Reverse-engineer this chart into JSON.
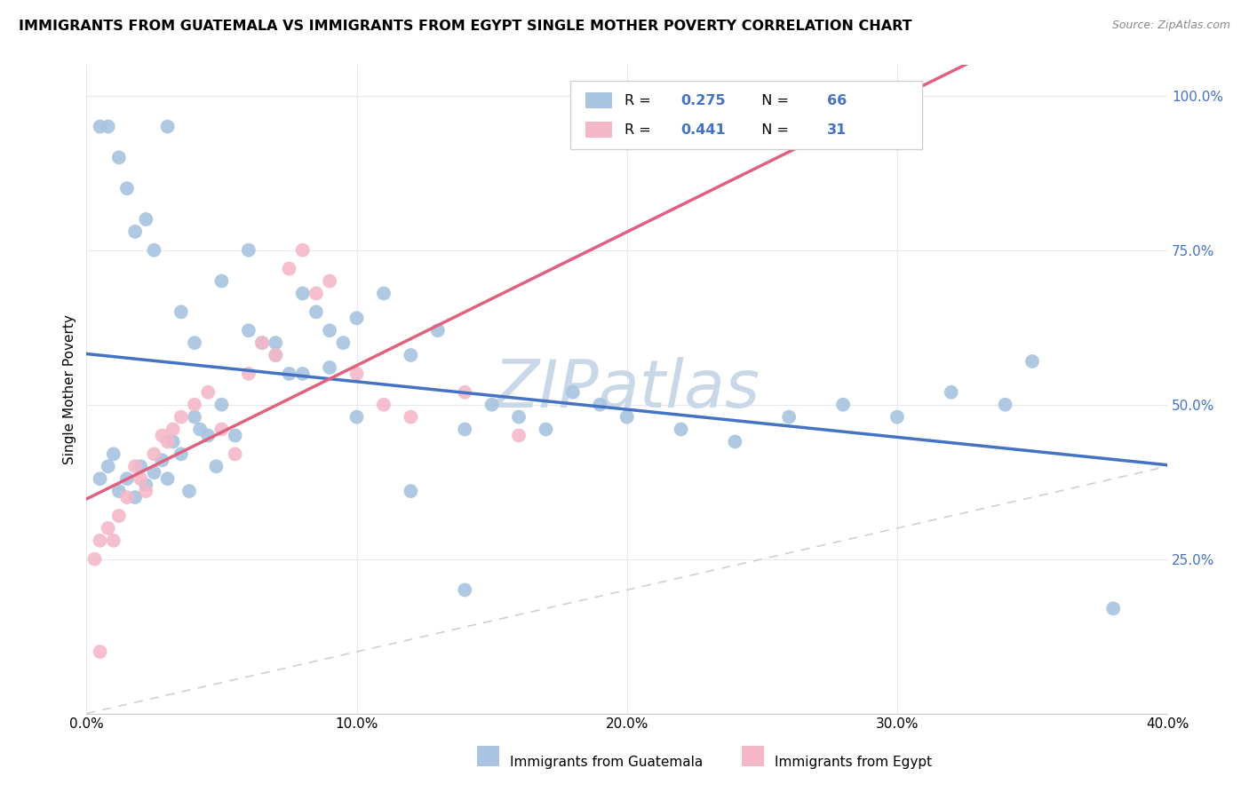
{
  "title": "IMMIGRANTS FROM GUATEMALA VS IMMIGRANTS FROM EGYPT SINGLE MOTHER POVERTY CORRELATION CHART",
  "source": "Source: ZipAtlas.com",
  "ylabel": "Single Mother Poverty",
  "y_ticks": [
    0.0,
    0.25,
    0.5,
    0.75,
    1.0
  ],
  "x_ticks": [
    0.0,
    0.1,
    0.2,
    0.3,
    0.4
  ],
  "R_guatemala": "0.275",
  "N_guatemala": "66",
  "R_egypt": "0.441",
  "N_egypt": "31",
  "dot_color_guatemala": "#a8c4e0",
  "dot_color_egypt": "#f4b8c8",
  "line_color_guatemala": "#4472c4",
  "line_color_egypt": "#e06080",
  "diagonal_color": "#d0d0d0",
  "watermark": "ZIPatlas",
  "watermark_color": "#c8d8e8",
  "r_n_color": "#4472c4",
  "background_color": "#ffffff",
  "legend_label_guatemala": "Immigrants from Guatemala",
  "legend_label_egypt": "Immigrants from Egypt",
  "guatemala_x": [
    0.005,
    0.008,
    0.01,
    0.012,
    0.015,
    0.018,
    0.02,
    0.022,
    0.025,
    0.028,
    0.03,
    0.032,
    0.035,
    0.038,
    0.04,
    0.042,
    0.045,
    0.048,
    0.05,
    0.055,
    0.06,
    0.065,
    0.07,
    0.075,
    0.08,
    0.085,
    0.09,
    0.095,
    0.1,
    0.11,
    0.12,
    0.13,
    0.14,
    0.15,
    0.16,
    0.17,
    0.18,
    0.19,
    0.2,
    0.22,
    0.24,
    0.26,
    0.28,
    0.3,
    0.32,
    0.34,
    0.005,
    0.008,
    0.012,
    0.015,
    0.018,
    0.022,
    0.025,
    0.03,
    0.035,
    0.04,
    0.05,
    0.06,
    0.07,
    0.08,
    0.09,
    0.1,
    0.12,
    0.14,
    0.35,
    0.38
  ],
  "guatemala_y": [
    0.38,
    0.4,
    0.42,
    0.36,
    0.38,
    0.35,
    0.4,
    0.37,
    0.39,
    0.41,
    0.38,
    0.44,
    0.42,
    0.36,
    0.48,
    0.46,
    0.45,
    0.4,
    0.5,
    0.45,
    0.62,
    0.6,
    0.58,
    0.55,
    0.68,
    0.65,
    0.62,
    0.6,
    0.64,
    0.68,
    0.58,
    0.62,
    0.46,
    0.5,
    0.48,
    0.46,
    0.52,
    0.5,
    0.48,
    0.46,
    0.44,
    0.48,
    0.5,
    0.48,
    0.52,
    0.5,
    0.95,
    0.95,
    0.9,
    0.85,
    0.78,
    0.8,
    0.75,
    0.95,
    0.65,
    0.6,
    0.7,
    0.75,
    0.6,
    0.55,
    0.56,
    0.48,
    0.36,
    0.2,
    0.57,
    0.17
  ],
  "egypt_x": [
    0.003,
    0.005,
    0.008,
    0.01,
    0.012,
    0.015,
    0.018,
    0.02,
    0.022,
    0.025,
    0.028,
    0.03,
    0.032,
    0.035,
    0.04,
    0.045,
    0.05,
    0.055,
    0.06,
    0.065,
    0.07,
    0.075,
    0.08,
    0.085,
    0.09,
    0.1,
    0.11,
    0.12,
    0.14,
    0.16,
    0.005
  ],
  "egypt_y": [
    0.25,
    0.28,
    0.3,
    0.28,
    0.32,
    0.35,
    0.4,
    0.38,
    0.36,
    0.42,
    0.45,
    0.44,
    0.46,
    0.48,
    0.5,
    0.52,
    0.46,
    0.42,
    0.55,
    0.6,
    0.58,
    0.72,
    0.75,
    0.68,
    0.7,
    0.55,
    0.5,
    0.48,
    0.52,
    0.45,
    0.1
  ],
  "xlim": [
    0.0,
    0.4
  ],
  "ylim": [
    0.0,
    1.05
  ]
}
